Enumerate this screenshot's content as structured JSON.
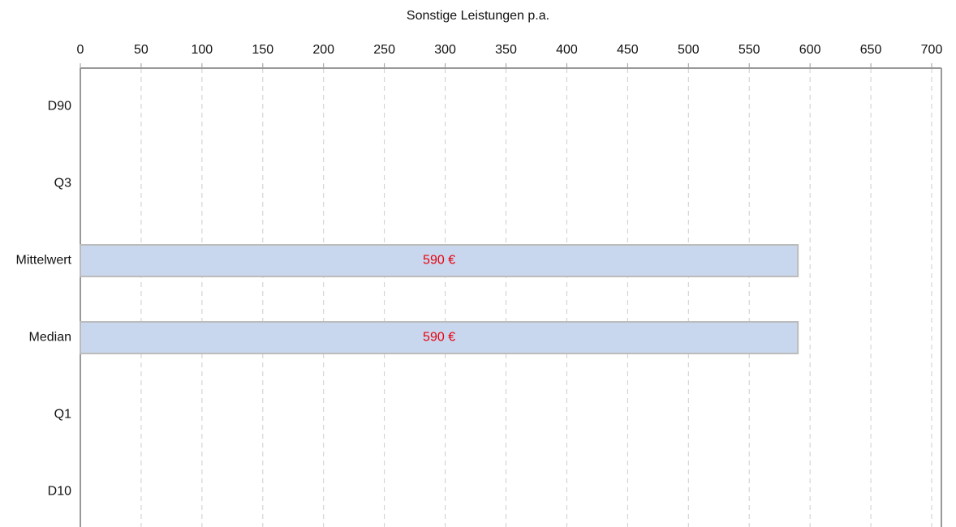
{
  "chart_data": {
    "type": "bar",
    "orientation": "horizontal",
    "title": "Sonstige Leistungen p.a.",
    "categories": [
      "D90",
      "Q3",
      "Mittelwert",
      "Median",
      "Q1",
      "D10"
    ],
    "values": [
      null,
      null,
      590,
      590,
      null,
      null
    ],
    "value_labels": [
      null,
      null,
      "590 €",
      "590 €",
      null,
      null
    ],
    "color": "#c9d7ee",
    "label_color": "#e8000b",
    "xlim": [
      0,
      708
    ],
    "xticks": [
      0,
      50,
      100,
      150,
      200,
      250,
      300,
      350,
      400,
      450,
      500,
      550,
      600,
      650,
      700
    ],
    "grid": true
  }
}
